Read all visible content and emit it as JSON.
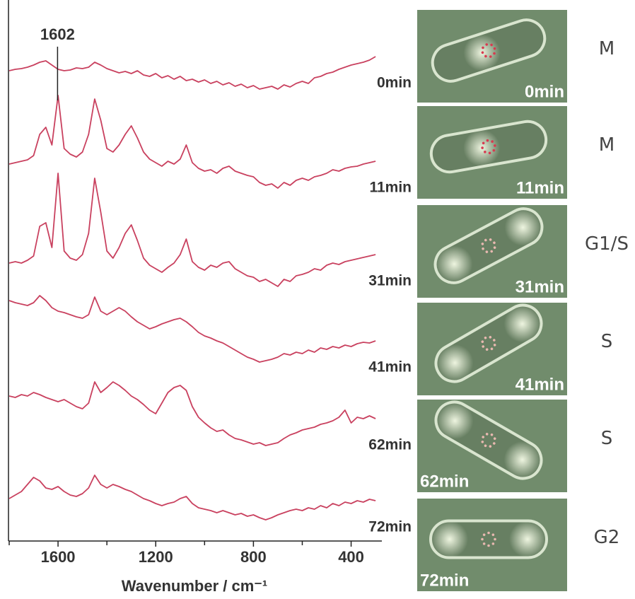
{
  "chart_data": {
    "type": "line",
    "x_label": "Wavenumber / cm⁻¹",
    "annotations": [
      {
        "text": "1602",
        "x": 1602
      }
    ],
    "x": [
      1800,
      1775,
      1750,
      1725,
      1700,
      1675,
      1650,
      1625,
      1600,
      1575,
      1550,
      1525,
      1500,
      1475,
      1450,
      1425,
      1400,
      1375,
      1350,
      1325,
      1300,
      1275,
      1250,
      1225,
      1200,
      1175,
      1150,
      1125,
      1100,
      1075,
      1050,
      1025,
      1000,
      975,
      950,
      925,
      900,
      875,
      850,
      825,
      800,
      775,
      750,
      725,
      700,
      675,
      650,
      625,
      600,
      575,
      550,
      525,
      500,
      475,
      450,
      425,
      400,
      375,
      350,
      325,
      300
    ],
    "xlim": [
      1800,
      280
    ],
    "xticks": [
      1600,
      1200,
      800,
      400
    ],
    "xminorticks": [
      1800,
      1400,
      1000,
      600
    ],
    "ylim": [
      0,
      750
    ],
    "series": [
      {
        "name": "0min",
        "color": "#c9415f",
        "values": [
          660,
          662,
          663,
          665,
          668,
          672,
          674,
          668,
          662,
          660,
          661,
          664,
          663,
          665,
          672,
          668,
          663,
          660,
          657,
          659,
          656,
          660,
          654,
          652,
          656,
          650,
          653,
          648,
          652,
          646,
          648,
          644,
          647,
          642,
          645,
          640,
          643,
          638,
          641,
          636,
          639,
          634,
          636,
          638,
          634,
          640,
          637,
          642,
          645,
          642,
          650,
          652,
          656,
          658,
          662,
          665,
          668,
          670,
          672,
          675,
          680
        ]
      },
      {
        "name": "11min",
        "color": "#c9415f",
        "values": [
          528,
          530,
          532,
          534,
          540,
          570,
          580,
          555,
          625,
          550,
          542,
          538,
          545,
          570,
          620,
          590,
          550,
          545,
          555,
          570,
          582,
          565,
          545,
          535,
          530,
          525,
          532,
          528,
          535,
          555,
          530,
          522,
          518,
          520,
          515,
          522,
          525,
          518,
          515,
          512,
          510,
          502,
          498,
          500,
          494,
          502,
          498,
          505,
          508,
          505,
          510,
          512,
          515,
          520,
          518,
          522,
          524,
          525,
          528,
          530,
          532
        ]
      },
      {
        "name": "31min",
        "color": "#c9415f",
        "values": [
          388,
          390,
          388,
          392,
          398,
          440,
          445,
          410,
          515,
          405,
          395,
          392,
          400,
          430,
          508,
          460,
          405,
          395,
          410,
          430,
          442,
          420,
          395,
          385,
          380,
          375,
          382,
          388,
          400,
          422,
          390,
          382,
          378,
          385,
          382,
          388,
          390,
          380,
          375,
          370,
          368,
          362,
          365,
          360,
          355,
          365,
          362,
          370,
          372,
          375,
          380,
          378,
          385,
          388,
          386,
          390,
          392,
          394,
          396,
          398,
          400
        ]
      },
      {
        "name": "41min",
        "color": "#c9415f",
        "values": [
          335,
          332,
          330,
          328,
          332,
          342,
          335,
          325,
          320,
          318,
          315,
          312,
          310,
          315,
          340,
          320,
          315,
          320,
          325,
          320,
          312,
          305,
          300,
          295,
          298,
          302,
          305,
          308,
          310,
          305,
          298,
          290,
          285,
          282,
          278,
          275,
          270,
          265,
          260,
          255,
          252,
          248,
          250,
          252,
          255,
          260,
          258,
          262,
          260,
          265,
          262,
          268,
          266,
          270,
          268,
          272,
          270,
          274,
          276,
          275,
          278
        ]
      },
      {
        "name": "62min",
        "color": "#c9415f",
        "values": [
          200,
          198,
          202,
          200,
          205,
          202,
          198,
          195,
          192,
          195,
          190,
          185,
          182,
          190,
          220,
          205,
          212,
          220,
          215,
          208,
          200,
          195,
          188,
          180,
          175,
          190,
          205,
          212,
          215,
          208,
          185,
          170,
          162,
          155,
          150,
          152,
          145,
          140,
          138,
          135,
          132,
          134,
          130,
          132,
          134,
          140,
          145,
          148,
          152,
          154,
          156,
          160,
          162,
          165,
          170,
          180,
          162,
          170,
          168,
          172,
          168
        ]
      },
      {
        "name": "72min",
        "color": "#c9415f",
        "values": [
          55,
          60,
          65,
          75,
          85,
          80,
          70,
          68,
          72,
          65,
          60,
          58,
          62,
          70,
          88,
          75,
          70,
          75,
          72,
          68,
          65,
          60,
          55,
          52,
          48,
          45,
          48,
          50,
          55,
          58,
          48,
          42,
          40,
          38,
          35,
          38,
          35,
          32,
          34,
          30,
          32,
          28,
          25,
          28,
          32,
          35,
          38,
          40,
          38,
          42,
          40,
          45,
          42,
          48,
          45,
          50,
          48,
          52,
          50,
          54,
          52
        ]
      }
    ]
  },
  "cells": [
    {
      "label": "0min",
      "phase": "M"
    },
    {
      "label": "11min",
      "phase": "M"
    },
    {
      "label": "31min",
      "phase": "G1/S"
    },
    {
      "label": "41min",
      "phase": "S"
    },
    {
      "label": "62min",
      "phase": "S"
    },
    {
      "label": "72min",
      "phase": "G2"
    }
  ]
}
